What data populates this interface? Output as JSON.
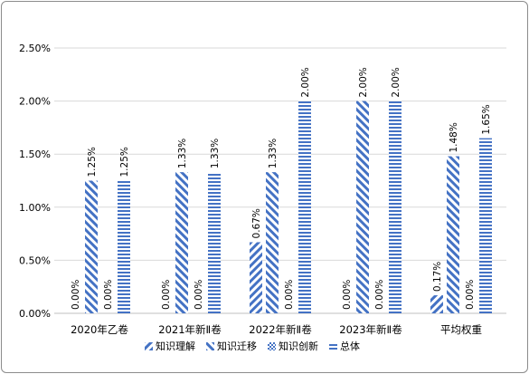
{
  "chart_data": {
    "type": "bar",
    "title": "",
    "xlabel": "",
    "ylabel": "",
    "ylim": [
      0,
      0.025
    ],
    "yticks": [
      "0.00%",
      "0.50%",
      "1.00%",
      "1.50%",
      "2.00%",
      "2.50%"
    ],
    "ytick_values": [
      0,
      0.005,
      0.01,
      0.015,
      0.02,
      0.025
    ],
    "categories": [
      "2020年乙卷",
      "2021年新Ⅱ卷",
      "2022年新Ⅱ卷",
      "2023年新Ⅱ卷",
      "平均权重"
    ],
    "series": [
      {
        "name": "知识理解",
        "values": [
          0.0,
          0.0,
          0.0067,
          0.0,
          0.0017
        ],
        "labels": [
          "0.00%",
          "0.00%",
          "0.67%",
          "0.00%",
          "0.17%"
        ],
        "pattern": "diag-right"
      },
      {
        "name": "知识迁移",
        "values": [
          0.0125,
          0.0133,
          0.0133,
          0.02,
          0.0148
        ],
        "labels": [
          "1.25%",
          "1.33%",
          "1.33%",
          "2.00%",
          "1.48%"
        ],
        "pattern": "diag-left"
      },
      {
        "name": "知识创新",
        "values": [
          0.0,
          0.0,
          0.0,
          0.0,
          0.0
        ],
        "labels": [
          "0.00%",
          "0.00%",
          "0.00%",
          "0.00%",
          "0.00%"
        ],
        "pattern": "cross"
      },
      {
        "name": "总体",
        "values": [
          0.0125,
          0.0133,
          0.02,
          0.02,
          0.0165
        ],
        "labels": [
          "1.25%",
          "1.33%",
          "2.00%",
          "2.00%",
          "1.65%"
        ],
        "pattern": "horizontal"
      }
    ],
    "grid": true,
    "legend_position": "bottom",
    "colors": {
      "bar": "#4472c4",
      "grid": "#d9d9d9",
      "axis": "#bfbfbf"
    }
  }
}
